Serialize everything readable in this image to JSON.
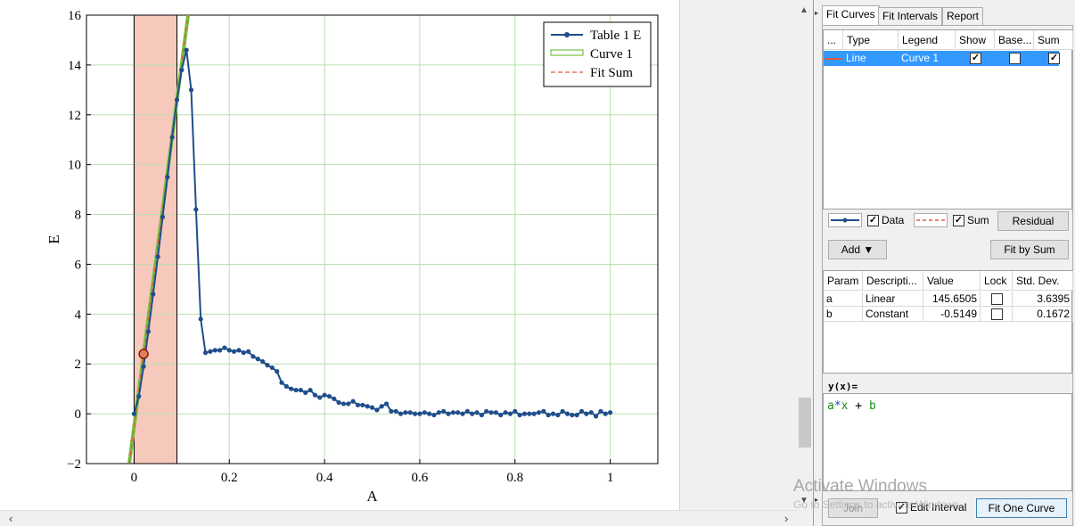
{
  "chart_data": {
    "type": "line",
    "xlabel": "A",
    "ylabel": "E",
    "xlim": [
      -0.1,
      1.1
    ],
    "ylim": [
      -2,
      16
    ],
    "xticks": [
      0,
      0.2,
      0.4,
      0.6,
      0.8,
      1
    ],
    "xtick_labels": [
      "0",
      "0.2",
      "0.4",
      "0.6",
      "0.8",
      "1"
    ],
    "yticks": [
      -2,
      0,
      2,
      4,
      6,
      8,
      10,
      12,
      14,
      16
    ],
    "ytick_labels": [
      "−2",
      "0",
      "2",
      "4",
      "6",
      "8",
      "10",
      "12",
      "14",
      "16"
    ],
    "grid": true,
    "legend_position": "top-right",
    "fit_interval": [
      0,
      0.09
    ],
    "series": [
      {
        "name": "Table 1 E",
        "style": "line-with-markers",
        "color": "#1f4e8c",
        "x": [
          0,
          0.01,
          0.02,
          0.03,
          0.04,
          0.05,
          0.06,
          0.07,
          0.08,
          0.09,
          0.1,
          0.11,
          0.12,
          0.13,
          0.14,
          0.15,
          0.16,
          0.17,
          0.18,
          0.19,
          0.2,
          0.21,
          0.22,
          0.23,
          0.24,
          0.25,
          0.26,
          0.27,
          0.28,
          0.29,
          0.3,
          0.31,
          0.32,
          0.33,
          0.34,
          0.35,
          0.36,
          0.37,
          0.38,
          0.39,
          0.4,
          0.41,
          0.42,
          0.43,
          0.44,
          0.45,
          0.46,
          0.47,
          0.48,
          0.49,
          0.5,
          0.51,
          0.52,
          0.53,
          0.54,
          0.55,
          0.56,
          0.57,
          0.58,
          0.59,
          0.6,
          0.61,
          0.62,
          0.63,
          0.64,
          0.65,
          0.66,
          0.67,
          0.68,
          0.69,
          0.7,
          0.71,
          0.72,
          0.73,
          0.74,
          0.75,
          0.76,
          0.77,
          0.78,
          0.79,
          0.8,
          0.81,
          0.82,
          0.83,
          0.84,
          0.85,
          0.86,
          0.87,
          0.88,
          0.89,
          0.9,
          0.91,
          0.92,
          0.93,
          0.94,
          0.95,
          0.96,
          0.97,
          0.98,
          0.99,
          1.0
        ],
        "y": [
          0,
          0.7,
          1.9,
          3.3,
          4.8,
          6.3,
          7.9,
          9.5,
          11.1,
          12.6,
          13.8,
          14.6,
          13.0,
          8.2,
          3.8,
          2.45,
          2.5,
          2.55,
          2.55,
          2.65,
          2.55,
          2.5,
          2.55,
          2.45,
          2.5,
          2.3,
          2.2,
          2.1,
          1.95,
          1.85,
          1.7,
          1.25,
          1.1,
          1.0,
          0.95,
          0.95,
          0.85,
          0.95,
          0.75,
          0.65,
          0.75,
          0.7,
          0.6,
          0.45,
          0.4,
          0.4,
          0.5,
          0.35,
          0.35,
          0.3,
          0.25,
          0.15,
          0.3,
          0.4,
          0.1,
          0.1,
          0.0,
          0.05,
          0.05,
          0.0,
          0.0,
          0.05,
          0.0,
          -0.05,
          0.05,
          0.1,
          0.0,
          0.05,
          0.05,
          0.0,
          0.1,
          0.0,
          0.05,
          -0.05,
          0.1,
          0.05,
          0.05,
          -0.05,
          0.05,
          0.0,
          0.1,
          -0.05,
          0.0,
          0.0,
          0.0,
          0.05,
          0.1,
          -0.05,
          0.0,
          -0.05,
          0.1,
          0.0,
          -0.05,
          -0.05,
          0.1,
          0.0,
          0.05,
          -0.1,
          0.1,
          0.0,
          0.05
        ]
      },
      {
        "name": "Curve 1",
        "style": "line",
        "color": "#76c043",
        "x": [
          -0.01,
          0.115
        ],
        "y": [
          -1.97,
          16.23
        ]
      },
      {
        "name": "Fit Sum",
        "style": "dashed",
        "color": "#e05a3a",
        "x": [
          -0.01,
          0.115
        ],
        "y": [
          -1.97,
          16.23
        ]
      }
    ],
    "highlight_point": {
      "x": 0.02,
      "y": 2.4
    }
  },
  "tabs": [
    "Fit Curves",
    "Fit Intervals",
    "Report"
  ],
  "curve_table": {
    "headers": [
      "...",
      "Type",
      "Legend",
      "Show",
      "Base...",
      "Sum"
    ],
    "rows": [
      {
        "type": "Line",
        "legend": "Curve 1",
        "show": true,
        "base": false,
        "sum": true
      }
    ]
  },
  "data_check_label": "Data",
  "sum_check_label": "Sum",
  "residual_label": "Residual",
  "add_label": "Add ▼",
  "fit_by_sum_label": "Fit by Sum",
  "param_table": {
    "headers": [
      "Param",
      "Descripti...",
      "Value",
      "Lock",
      "Std. Dev."
    ],
    "rows": [
      {
        "param": "a",
        "desc": "Linear",
        "value": "145.6505",
        "lock": false,
        "std": "3.6395"
      },
      {
        "param": "b",
        "desc": "Constant",
        "value": "-0.5149",
        "lock": false,
        "std": "0.1672"
      }
    ]
  },
  "formula_label": "y(x)=",
  "formula": {
    "a": "a",
    "op1": "*",
    "x": "x",
    "op2": " + ",
    "b": "b"
  },
  "join_label": "Join",
  "edit_interval_label": "Edit Interval",
  "fit_one_curve_label": "Fit One Curve",
  "watermark_title": "Activate Windows",
  "watermark_sub": "Go to Settings to activate Windows."
}
